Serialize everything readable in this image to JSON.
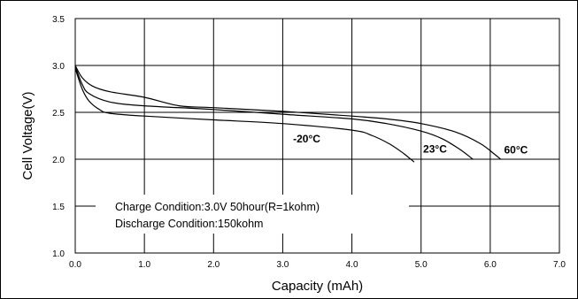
{
  "chart_data": {
    "type": "line",
    "title": "",
    "xlabel": "Capacity (mAh)",
    "ylabel": "Cell Voltage(V)",
    "xlim": [
      0,
      7.0
    ],
    "ylim": [
      1.0,
      3.5
    ],
    "grid": true,
    "x_ticks": [
      "0.0",
      "1.0",
      "2.0",
      "3.0",
      "4.0",
      "5.0",
      "6.0",
      "7.0"
    ],
    "y_ticks": [
      "1.0",
      "1.5",
      "2.0",
      "2.5",
      "3.0",
      "3.5"
    ],
    "annotations": [
      "Charge Condition:3.0V 50hour(R=1kohm)",
      "Discharge Condition:150kohm"
    ],
    "series": [
      {
        "name": "-20°C",
        "points": [
          [
            0,
            2.97
          ],
          [
            0.1,
            2.75
          ],
          [
            0.2,
            2.62
          ],
          [
            0.35,
            2.53
          ],
          [
            0.5,
            2.49
          ],
          [
            1,
            2.46
          ],
          [
            2,
            2.42
          ],
          [
            3,
            2.38
          ],
          [
            4,
            2.31
          ],
          [
            4.3,
            2.25
          ],
          [
            4.55,
            2.16
          ],
          [
            4.75,
            2.06
          ],
          [
            4.9,
            1.97
          ]
        ]
      },
      {
        "name": "23°C",
        "points": [
          [
            0,
            2.99
          ],
          [
            0.1,
            2.8
          ],
          [
            0.2,
            2.7
          ],
          [
            0.5,
            2.61
          ],
          [
            1,
            2.57
          ],
          [
            2,
            2.53
          ],
          [
            3,
            2.48
          ],
          [
            4,
            2.43
          ],
          [
            4.5,
            2.38
          ],
          [
            5,
            2.3
          ],
          [
            5.3,
            2.22
          ],
          [
            5.55,
            2.11
          ],
          [
            5.75,
            2.0
          ]
        ]
      },
      {
        "name": "60°C",
        "points": [
          [
            0,
            3.0
          ],
          [
            0.1,
            2.87
          ],
          [
            0.25,
            2.78
          ],
          [
            0.5,
            2.72
          ],
          [
            1,
            2.66
          ],
          [
            1.5,
            2.57
          ],
          [
            2,
            2.55
          ],
          [
            3,
            2.51
          ],
          [
            4,
            2.46
          ],
          [
            4.5,
            2.43
          ],
          [
            5,
            2.38
          ],
          [
            5.5,
            2.29
          ],
          [
            5.85,
            2.17
          ],
          [
            6.05,
            2.06
          ],
          [
            6.15,
            2.0
          ]
        ]
      }
    ]
  }
}
